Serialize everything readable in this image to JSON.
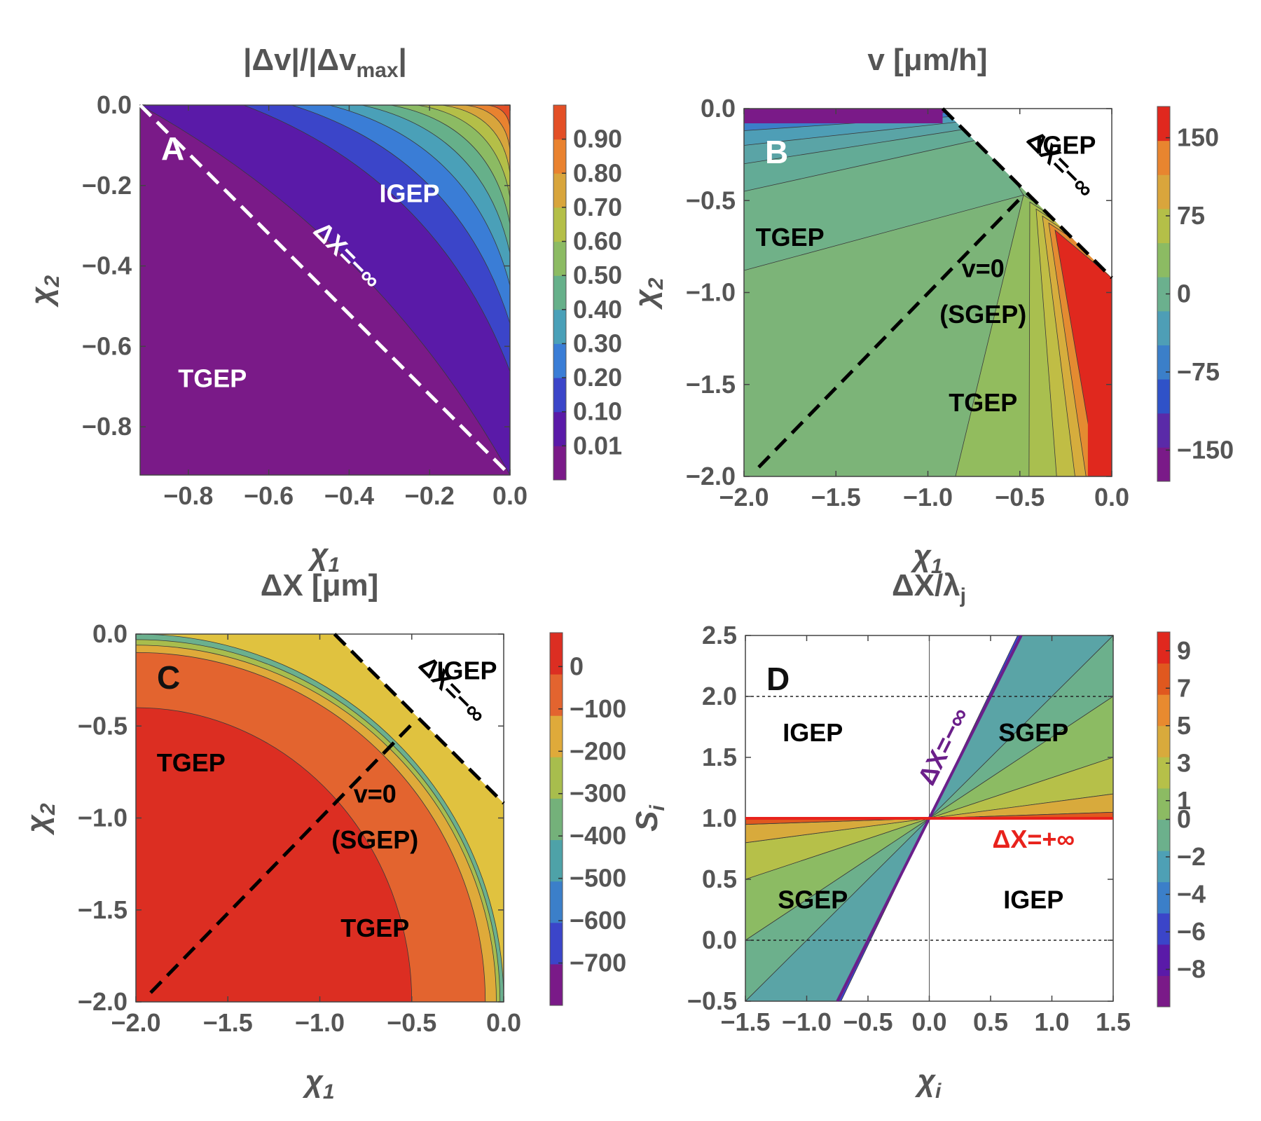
{
  "chart_data": [
    {
      "type": "heatmap",
      "panel_label": "A",
      "title_parts": [
        "|Δv|/|Δv",
        "max",
        "|"
      ],
      "xlabel_parts": [
        "χ",
        "1"
      ],
      "ylabel_parts": [
        "χ",
        "2"
      ],
      "xlim": [
        -0.92,
        0.0
      ],
      "ylim": [
        -0.92,
        0.0
      ],
      "xticks": [
        -0.8,
        -0.6,
        -0.4,
        -0.2,
        0.0
      ],
      "xtick_labels": [
        "−0.8",
        "−0.6",
        "−0.4",
        "−0.2",
        "0.0"
      ],
      "yticks": [
        0.0,
        -0.2,
        -0.4,
        -0.6,
        -0.8
      ],
      "ytick_labels": [
        "0.0",
        "−0.2",
        "−0.4",
        "−0.6",
        "−0.8"
      ],
      "colorbar_levels": [
        0.01,
        0.1,
        0.2,
        0.3,
        0.4,
        0.5,
        0.6,
        0.7,
        0.8,
        0.9
      ],
      "colorbar_labels": [
        "0.01",
        "0.10",
        "0.20",
        "0.30",
        "0.40",
        "0.50",
        "0.60",
        "0.70",
        "0.80",
        "0.90"
      ],
      "boundary": {
        "label": "ΔX=−∞",
        "from": [
          -0.92,
          0.0
        ],
        "to": [
          0.0,
          -0.92
        ],
        "color": "#ffffff"
      },
      "regions": [
        {
          "label": "IGEP",
          "x": -0.25,
          "y": -0.22,
          "color": "#ffffff"
        },
        {
          "label": "TGEP",
          "x": -0.74,
          "y": -0.68,
          "color": "#ffffff"
        }
      ]
    },
    {
      "type": "heatmap",
      "panel_label": "B",
      "title": "v [μm/h]",
      "xlabel_parts": [
        "χ",
        "1"
      ],
      "ylabel_parts": [
        "χ",
        "2"
      ],
      "xlim": [
        -2.0,
        0.0
      ],
      "ylim": [
        -2.0,
        0.0
      ],
      "xticks": [
        -2.0,
        -1.5,
        -1.0,
        -0.5,
        0.0
      ],
      "xtick_labels": [
        "−2.0",
        "−1.5",
        "−1.0",
        "−0.5",
        "0.0"
      ],
      "yticks": [
        0.0,
        -0.5,
        -1.0,
        -1.5,
        -2.0
      ],
      "ytick_labels": [
        "0.0",
        "−0.5",
        "−1.0",
        "−1.5",
        "−2.0"
      ],
      "colorbar_ticks": [
        150,
        75,
        0,
        -75,
        -150
      ],
      "colorbar_labels": [
        "150",
        "75",
        "0",
        "−75",
        "−150"
      ],
      "boundary": {
        "label": "ΔX=−∞",
        "from": [
          -0.92,
          0.0
        ],
        "to": [
          0.0,
          -0.92
        ],
        "color": "#000000"
      },
      "v0_line": {
        "from": [
          -1.92,
          -1.95
        ],
        "to": [
          -0.48,
          -0.47
        ]
      },
      "regions": [
        {
          "label": "IGEP",
          "x": -0.25,
          "y": -0.2,
          "color": "#000000"
        },
        {
          "label": "TGEP",
          "x": -1.75,
          "y": -0.7,
          "color": "#000000"
        },
        {
          "label": "v=0",
          "x": -0.7,
          "y": -0.87,
          "color": "#000000"
        },
        {
          "label": "(SGEP)",
          "x": -0.7,
          "y": -1.12,
          "color": "#000000"
        },
        {
          "label": "TGEP",
          "x": -0.7,
          "y": -1.6,
          "color": "#000000"
        }
      ]
    },
    {
      "type": "heatmap",
      "panel_label": "C",
      "title": "ΔX [μm]",
      "xlabel_parts": [
        "χ",
        "1"
      ],
      "ylabel_parts": [
        "χ",
        "2"
      ],
      "xlim": [
        -2.0,
        0.0
      ],
      "ylim": [
        -2.0,
        0.0
      ],
      "xticks": [
        -2.0,
        -1.5,
        -1.0,
        -0.5,
        0.0
      ],
      "xtick_labels": [
        "−2.0",
        "−1.5",
        "−1.0",
        "−0.5",
        "0.0"
      ],
      "yticks": [
        0.0,
        -0.5,
        -1.0,
        -1.5,
        -2.0
      ],
      "ytick_labels": [
        "0.0",
        "−0.5",
        "−1.0",
        "−1.5",
        "−2.0"
      ],
      "colorbar_ticks": [
        0,
        -100,
        -200,
        -300,
        -400,
        -500,
        -600,
        -700
      ],
      "colorbar_labels": [
        "0",
        "−100",
        "−200",
        "−300",
        "−400",
        "−500",
        "−600",
        "−700"
      ],
      "boundary": {
        "label": "ΔX=−∞",
        "from": [
          -0.92,
          0.0
        ],
        "to": [
          0.0,
          -0.92
        ],
        "color": "#000000"
      },
      "v0_line": {
        "from": [
          -1.92,
          -1.95
        ],
        "to": [
          -0.48,
          -0.47
        ]
      },
      "regions": [
        {
          "label": "IGEP",
          "x": -0.2,
          "y": -0.2,
          "color": "#000000"
        },
        {
          "label": "TGEP",
          "x": -1.7,
          "y": -0.7,
          "color": "#000000"
        },
        {
          "label": "v=0",
          "x": -0.7,
          "y": -0.87,
          "color": "#000000"
        },
        {
          "label": "(SGEP)",
          "x": -0.7,
          "y": -1.12,
          "color": "#000000"
        },
        {
          "label": "TGEP",
          "x": -0.7,
          "y": -1.6,
          "color": "#000000"
        }
      ]
    },
    {
      "type": "heatmap",
      "panel_label": "D",
      "title_parts": [
        "ΔX/λ",
        "j"
      ],
      "xlabel_parts": [
        "χ",
        "i"
      ],
      "ylabel_parts": [
        "S",
        "i"
      ],
      "xlim": [
        -1.5,
        1.5
      ],
      "ylim": [
        -0.5,
        2.5
      ],
      "xticks": [
        -1.5,
        -1.0,
        -0.5,
        0.0,
        0.5,
        1.0,
        1.5
      ],
      "xtick_labels": [
        "−1.5",
        "−1.0",
        "−0.5",
        "0.0",
        "0.5",
        "1.0",
        "1.5"
      ],
      "yticks": [
        2.5,
        2.0,
        1.5,
        1.0,
        0.5,
        0.0,
        -0.5
      ],
      "ytick_labels": [
        "2.5",
        "2.0",
        "1.5",
        "1.0",
        "0.5",
        "0.0",
        "−0.5"
      ],
      "colorbar_ticks": [
        9,
        7,
        5,
        3,
        1,
        0,
        -2,
        -4,
        -6,
        -8
      ],
      "colorbar_labels": [
        "9",
        "7",
        "5",
        "3",
        "1",
        "0",
        "−2",
        "−4",
        "−6",
        "−8"
      ],
      "reference_lines": {
        "horizontal": [
          2.0,
          0.0
        ],
        "vertical": [
          0.0
        ]
      },
      "minus_infinity_line": {
        "label": "ΔX=−∞",
        "slope": 2.0,
        "intercept": 1.0,
        "color": "#6b1f8a"
      },
      "plus_infinity_line": {
        "label": "ΔX=+∞",
        "y": 1.0,
        "color": "#e8221c"
      },
      "regions": [
        {
          "label": "IGEP",
          "x": -0.95,
          "y": 1.7,
          "color": "#000000"
        },
        {
          "label": "SGEP",
          "x": 0.85,
          "y": 1.7,
          "color": "#000000"
        },
        {
          "label": "SGEP",
          "x": -0.95,
          "y": 0.33,
          "color": "#000000"
        },
        {
          "label": "IGEP",
          "x": 0.85,
          "y": 0.33,
          "color": "#000000"
        }
      ]
    }
  ]
}
